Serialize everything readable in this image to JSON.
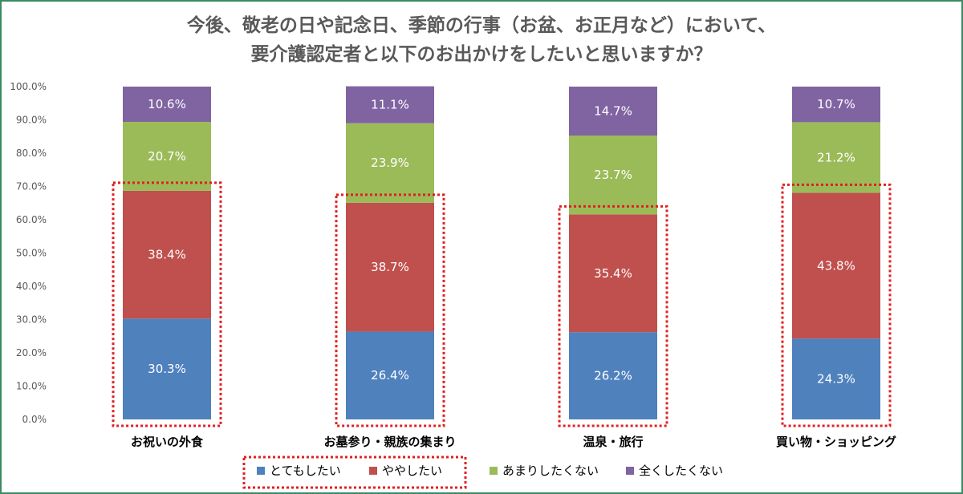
{
  "chart_data": {
    "type": "stacked-bar",
    "title_line1": "今後、敬老の日や記念日、季節の行事（お盆、お正月など）において、",
    "title_line2": "要介護認定者と以下のお出かけをしたいと思いますか？",
    "categories": [
      "お祝いの外食",
      "お墓参り・親族の集まり",
      "温泉・旅行",
      "買い物・ショッピング"
    ],
    "series": [
      {
        "name": "とてもしたい",
        "color": "#4f81bd",
        "values": [
          30.3,
          26.4,
          26.2,
          24.3
        ]
      },
      {
        "name": "ややしたい",
        "color": "#c0504d",
        "values": [
          38.4,
          38.7,
          35.4,
          43.8
        ]
      },
      {
        "name": "あまりしたくない",
        "color": "#9bbb59",
        "values": [
          20.7,
          23.9,
          23.7,
          21.2
        ]
      },
      {
        "name": "全くしたくない",
        "color": "#8064a2",
        "values": [
          10.6,
          11.1,
          14.7,
          10.7
        ]
      }
    ],
    "value_labels": [
      [
        "30.3%",
        "26.4%",
        "26.2%",
        "24.3%"
      ],
      [
        "38.4%",
        "38.7%",
        "35.4%",
        "43.8%"
      ],
      [
        "20.7%",
        "23.9%",
        "23.7%",
        "21.2%"
      ],
      [
        "10.6%",
        "11.1%",
        "14.7%",
        "10.7%"
      ]
    ],
    "ylim": [
      0,
      100
    ],
    "yticks": [
      0,
      10,
      20,
      30,
      40,
      50,
      60,
      70,
      80,
      90,
      100
    ],
    "ytick_labels": [
      "0.0%",
      "10.0%",
      "20.0%",
      "30.0%",
      "40.0%",
      "50.0%",
      "60.0%",
      "70.0%",
      "80.0%",
      "90.0%",
      "100.0%"
    ],
    "legend_position": "bottom",
    "highlight_color": "#e02020",
    "grid": false
  }
}
